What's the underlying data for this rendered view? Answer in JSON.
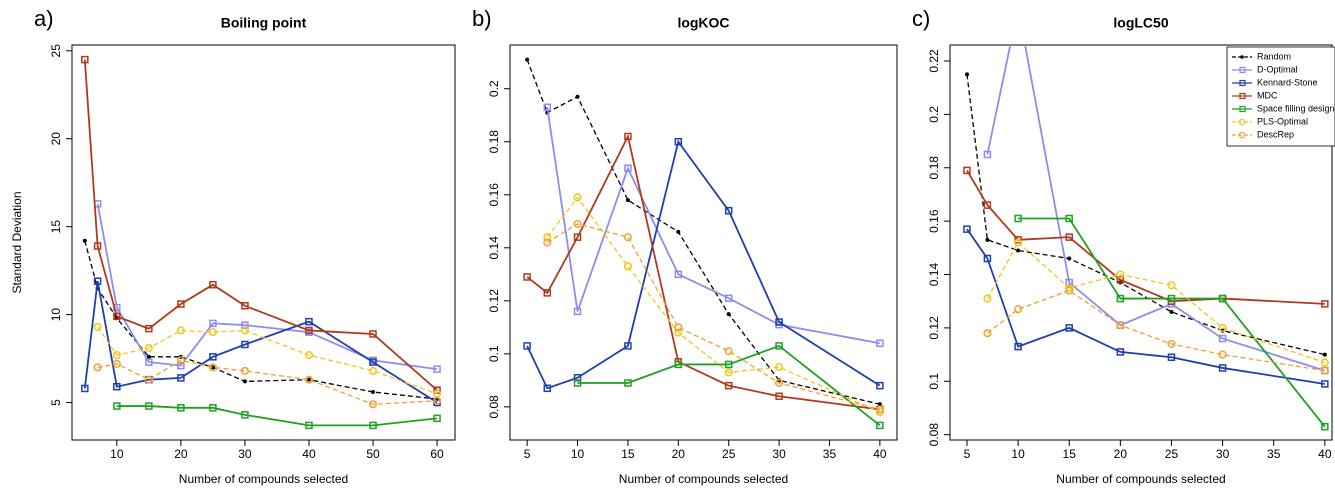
{
  "chart_data": [
    {
      "type": "line",
      "panel_label": "a)",
      "title": "Boiling point",
      "x_label": "Number of compounds selected",
      "y_label": "Standard Deviation",
      "x": [
        5,
        7,
        10,
        15,
        20,
        25,
        30,
        40,
        50,
        60
      ],
      "xlim": [
        3,
        62.8
      ],
      "xticks": [
        10,
        20,
        30,
        40,
        50,
        60
      ],
      "ylim": [
        2.87,
        25.33
      ],
      "yticks": [
        5,
        10,
        15,
        20,
        25
      ],
      "series": [
        {
          "color": "#000000",
          "linestyle": "dashed",
          "marker": "dot",
          "values": [
            14.2,
            11.5,
            9.8,
            7.6,
            7.6,
            7.0,
            6.2,
            6.3,
            5.6,
            5.2
          ]
        },
        {
          "color": "#8c8cf0",
          "linestyle": "solid",
          "marker": "square",
          "values": [
            null,
            16.3,
            10.4,
            7.3,
            7.1,
            9.5,
            9.4,
            9.0,
            7.4,
            6.9
          ]
        },
        {
          "color": "#1f3fb0",
          "linestyle": "solid",
          "marker": "square",
          "values": [
            5.8,
            11.9,
            5.9,
            6.3,
            6.4,
            7.6,
            8.3,
            9.6,
            7.3,
            5.0
          ]
        },
        {
          "color": "#b03a1e",
          "linestyle": "solid",
          "marker": "square",
          "values": [
            24.5,
            13.9,
            9.9,
            9.2,
            10.6,
            11.7,
            10.5,
            9.1,
            8.9,
            5.7
          ]
        },
        {
          "color": "#22a022",
          "linestyle": "solid",
          "marker": "square",
          "values": [
            null,
            null,
            4.8,
            4.8,
            4.7,
            4.7,
            4.3,
            3.7,
            3.7,
            4.1
          ]
        },
        {
          "color": "#f5c518",
          "linestyle": "dashed",
          "marker": "circle",
          "values": [
            null,
            9.3,
            7.7,
            8.1,
            9.1,
            9.0,
            9.1,
            7.7,
            6.8,
            5.5
          ]
        },
        {
          "color": "#f0a030",
          "linestyle": "dashed",
          "marker": "circle",
          "values": [
            null,
            7.0,
            7.2,
            6.3,
            7.4,
            7.0,
            6.8,
            6.3,
            4.9,
            5.1
          ]
        }
      ]
    },
    {
      "type": "line",
      "panel_label": "b)",
      "title": "logKOC",
      "x_label": "Number of compounds selected",
      "x": [
        5,
        7,
        10,
        15,
        20,
        25,
        30,
        40
      ],
      "xlim": [
        3.3,
        41.7
      ],
      "xticks": [
        5,
        10,
        15,
        20,
        25,
        30,
        35,
        40
      ],
      "ylim": [
        0.0675,
        0.2165
      ],
      "yticks": [
        0.08,
        0.1,
        0.12,
        0.14,
        0.16,
        0.18,
        0.2
      ],
      "series": [
        {
          "color": "#000000",
          "linestyle": "dashed",
          "marker": "dot",
          "values": [
            0.211,
            0.191,
            0.197,
            0.158,
            0.146,
            0.115,
            0.09,
            0.081
          ]
        },
        {
          "color": "#8c8cf0",
          "linestyle": "solid",
          "marker": "square",
          "values": [
            null,
            0.193,
            0.116,
            0.17,
            0.13,
            0.121,
            0.111,
            0.104
          ]
        },
        {
          "color": "#1f3fb0",
          "linestyle": "solid",
          "marker": "square",
          "values": [
            0.103,
            0.087,
            0.091,
            0.103,
            0.18,
            0.154,
            0.112,
            0.088
          ]
        },
        {
          "color": "#b03a1e",
          "linestyle": "solid",
          "marker": "square",
          "values": [
            0.129,
            0.123,
            0.144,
            0.182,
            0.097,
            0.088,
            0.084,
            0.079
          ]
        },
        {
          "color": "#22a022",
          "linestyle": "solid",
          "marker": "square",
          "values": [
            null,
            null,
            0.089,
            0.089,
            0.096,
            0.096,
            0.103,
            0.073
          ]
        },
        {
          "color": "#f5c518",
          "linestyle": "dashed",
          "marker": "circle",
          "values": [
            null,
            0.144,
            0.159,
            0.133,
            0.108,
            0.093,
            0.095,
            0.078
          ]
        },
        {
          "color": "#f0a030",
          "linestyle": "dashed",
          "marker": "circle",
          "values": [
            null,
            0.142,
            0.149,
            0.144,
            0.11,
            0.101,
            0.089,
            0.079
          ]
        }
      ]
    },
    {
      "type": "line",
      "panel_label": "c)",
      "title": "logLC50",
      "x_label": "Number of compounds selected",
      "x": [
        5,
        7,
        10,
        15,
        20,
        25,
        30,
        40
      ],
      "xlim": [
        3.34,
        40.7
      ],
      "xticks": [
        5,
        10,
        15,
        20,
        25,
        30,
        35,
        40
      ],
      "ylim": [
        0.078,
        0.226
      ],
      "yticks": [
        0.08,
        0.1,
        0.12,
        0.14,
        0.16,
        0.18,
        0.2,
        0.22
      ],
      "legend": "top-right",
      "series": [
        {
          "name": "Random",
          "color": "#000000",
          "linestyle": "dashed",
          "marker": "dot",
          "values": [
            0.215,
            0.153,
            0.149,
            0.146,
            0.137,
            0.126,
            0.119,
            0.11
          ]
        },
        {
          "name": "D-Optimal",
          "color": "#8c8cf0",
          "linestyle": "solid",
          "marker": "square",
          "values": [
            null,
            0.185,
            0.24,
            0.137,
            0.121,
            0.129,
            0.116,
            0.104
          ]
        },
        {
          "name": "Kennard-Stone",
          "color": "#1f3fb0",
          "linestyle": "solid",
          "marker": "square",
          "values": [
            0.157,
            0.146,
            0.113,
            0.12,
            0.111,
            0.109,
            0.105,
            0.099
          ]
        },
        {
          "name": "MDC",
          "color": "#b03a1e",
          "linestyle": "solid",
          "marker": "square",
          "values": [
            0.179,
            0.166,
            0.153,
            0.154,
            0.138,
            0.13,
            0.131,
            0.129
          ]
        },
        {
          "name": "Space filling design",
          "color": "#22a022",
          "linestyle": "solid",
          "marker": "square",
          "values": [
            null,
            null,
            0.161,
            0.161,
            0.131,
            0.131,
            0.131,
            0.083
          ]
        },
        {
          "name": "PLS-Optimal",
          "color": "#f5c518",
          "linestyle": "dashed",
          "marker": "circle",
          "values": [
            null,
            0.131,
            0.152,
            0.135,
            0.14,
            0.136,
            0.12,
            0.107
          ]
        },
        {
          "name": "DescRep",
          "color": "#f0a030",
          "linestyle": "dashed",
          "marker": "circle",
          "values": [
            null,
            0.118,
            0.127,
            0.134,
            0.121,
            0.114,
            0.11,
            0.104
          ]
        }
      ]
    }
  ]
}
